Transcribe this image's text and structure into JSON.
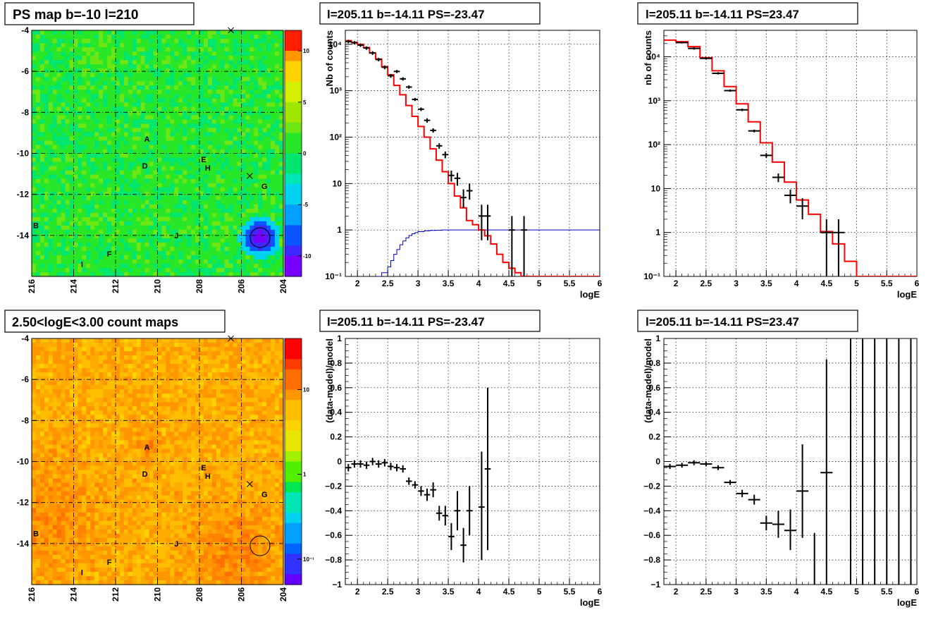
{
  "colors": {
    "model_line": "#ff0000",
    "ps_line": "#0000c8",
    "data_marker": "#000000",
    "grid": "#000000",
    "frame": "#000000",
    "palette": [
      "#7800ff",
      "#3c28ff",
      "#0a55ff",
      "#00a0ff",
      "#00d2f0",
      "#00e6b4",
      "#00e66e",
      "#28e628",
      "#8cf000",
      "#d2f000",
      "#ffd200",
      "#ff9600",
      "#ff5a00",
      "#ff1e00"
    ]
  },
  "chart_data": [
    {
      "type": "heatmap",
      "title": "PS map b=-10 l=210",
      "xlim": [
        216,
        204
      ],
      "ylim": [
        -16,
        -4
      ],
      "xticks": [
        216,
        214,
        212,
        210,
        208,
        206,
        204
      ],
      "yticks": [
        -4,
        -6,
        -8,
        -10,
        -12,
        -14
      ],
      "colorbar_range": [
        -12,
        12
      ],
      "colorbar_ticks": [
        -10,
        -5,
        0,
        5,
        10
      ],
      "grid": true,
      "sources": [
        {
          "label": "A",
          "l": 210.5,
          "b": -9.3
        },
        {
          "label": "B",
          "l": 215.8,
          "b": -13.5
        },
        {
          "label": "D",
          "l": 210.6,
          "b": -10.6
        },
        {
          "label": "E",
          "l": 207.8,
          "b": -10.3
        },
        {
          "label": "F",
          "l": 212.3,
          "b": -14.9
        },
        {
          "label": "G",
          "l": 204.9,
          "b": -11.6
        },
        {
          "label": "H",
          "l": 207.6,
          "b": -10.7
        },
        {
          "label": "I",
          "l": 213.6,
          "b": -15.4
        },
        {
          "label": "J",
          "l": 209.1,
          "b": -14.0
        }
      ],
      "crosses": [
        {
          "l": 206.5,
          "b": -4.0
        },
        {
          "l": 205.6,
          "b": -11.1
        }
      ],
      "circle": {
        "l": 205.11,
        "b": -14.11
      }
    },
    {
      "type": "line",
      "title": "l=205.11 b=-14.11 PS=-23.47",
      "xlabel": "logE",
      "ylabel": "Nb of counts",
      "xlim": [
        1.8,
        6
      ],
      "ylim": [
        0.1,
        20000
      ],
      "yscale": "log",
      "xticks": [
        2,
        2.5,
        3,
        3.5,
        4,
        4.5,
        5,
        5.5,
        6
      ],
      "yticks": [
        0.1,
        1,
        10,
        100,
        1000,
        10000
      ],
      "yticklabels": [
        "10⁻¹",
        "1",
        "10",
        "10²",
        "10³",
        "10⁴"
      ],
      "grid": true,
      "model": {
        "edges": [
          1.8,
          1.9,
          2.0,
          2.1,
          2.2,
          2.3,
          2.4,
          2.5,
          2.6,
          2.7,
          2.8,
          2.9,
          3.0,
          3.1,
          3.2,
          3.3,
          3.4,
          3.5,
          3.6,
          3.7,
          3.8,
          3.9,
          4.0,
          4.1,
          4.2,
          4.3,
          4.4,
          4.5,
          4.6,
          4.7,
          4.8,
          4.9,
          5.0,
          6.0
        ],
        "values": [
          12000,
          11000,
          10000,
          8500,
          6500,
          4800,
          3300,
          2200,
          1300,
          820,
          480,
          280,
          170,
          100,
          56,
          32,
          18,
          10,
          5.4,
          3.0,
          1.6,
          1.3,
          1.0,
          0.75,
          0.5,
          0.3,
          0.2,
          0.15,
          0.12,
          0.1,
          0.1,
          0.1,
          0.1
        ]
      },
      "ps": {
        "edges": [
          2.3,
          2.4,
          2.5,
          2.55,
          2.6,
          2.65,
          2.7,
          2.75,
          2.8,
          2.85,
          2.9,
          2.95,
          3.0,
          3.1,
          3.2,
          3.3,
          3.4,
          6.0
        ],
        "values": [
          0.1,
          0.12,
          0.16,
          0.22,
          0.3,
          0.38,
          0.48,
          0.58,
          0.68,
          0.76,
          0.83,
          0.88,
          0.92,
          0.96,
          0.98,
          0.99,
          1.0
        ]
      },
      "data": [
        {
          "x": 1.85,
          "y": 11500,
          "ylo": 10500,
          "yhi": 12500,
          "xerr": 0.05
        },
        {
          "x": 1.95,
          "y": 10800,
          "ylo": 9900,
          "yhi": 11700,
          "xerr": 0.05
        },
        {
          "x": 2.05,
          "y": 9600,
          "ylo": 8800,
          "yhi": 10400,
          "xerr": 0.05
        },
        {
          "x": 2.15,
          "y": 8300,
          "ylo": 7600,
          "yhi": 9000,
          "xerr": 0.05
        },
        {
          "x": 2.25,
          "y": 6500,
          "ylo": 5900,
          "yhi": 7100,
          "xerr": 0.05
        },
        {
          "x": 2.35,
          "y": 4700,
          "ylo": 4300,
          "yhi": 5100,
          "xerr": 0.05
        },
        {
          "x": 2.45,
          "y": 3200,
          "ylo": 2900,
          "yhi": 3500,
          "xerr": 0.05
        },
        {
          "x": 2.55,
          "y": 2100,
          "ylo": 1900,
          "yhi": 2300,
          "xerr": 0.05
        },
        {
          "x": 2.65,
          "y": 2600,
          "ylo": 2400,
          "yhi": 2800,
          "xerr": 0.05
        },
        {
          "x": 2.75,
          "y": 1800,
          "ylo": 1650,
          "yhi": 1950,
          "xerr": 0.05
        },
        {
          "x": 2.85,
          "y": 1200,
          "ylo": 1100,
          "yhi": 1300,
          "xerr": 0.05
        },
        {
          "x": 2.95,
          "y": 650,
          "ylo": 600,
          "yhi": 700,
          "xerr": 0.05
        },
        {
          "x": 3.05,
          "y": 400,
          "ylo": 365,
          "yhi": 435,
          "xerr": 0.05
        },
        {
          "x": 3.15,
          "y": 230,
          "ylo": 205,
          "yhi": 255,
          "xerr": 0.05
        },
        {
          "x": 3.25,
          "y": 140,
          "ylo": 125,
          "yhi": 155,
          "xerr": 0.05
        },
        {
          "x": 3.35,
          "y": 65,
          "ylo": 56,
          "yhi": 74,
          "xerr": 0.05
        },
        {
          "x": 3.45,
          "y": 42,
          "ylo": 35,
          "yhi": 49,
          "xerr": 0.05
        },
        {
          "x": 3.55,
          "y": 15,
          "ylo": 11,
          "yhi": 19,
          "xerr": 0.05
        },
        {
          "x": 3.65,
          "y": 13,
          "ylo": 9,
          "yhi": 17,
          "xerr": 0.05
        },
        {
          "x": 3.75,
          "y": 5,
          "ylo": 3,
          "yhi": 7.5,
          "xerr": 0.05
        },
        {
          "x": 3.85,
          "y": 7,
          "ylo": 4.5,
          "yhi": 10,
          "xerr": 0.05
        },
        {
          "x": 4.05,
          "y": 2,
          "ylo": 0.6,
          "yhi": 3.5,
          "xerr": 0.05
        },
        {
          "x": 4.15,
          "y": 2,
          "ylo": 0.6,
          "yhi": 3.5,
          "xerr": 0.05
        },
        {
          "x": 4.55,
          "y": 1,
          "ylo": 0.1,
          "yhi": 2.0,
          "xerr": 0.05
        },
        {
          "x": 4.75,
          "y": 1,
          "ylo": 0.1,
          "yhi": 2.0,
          "xerr": 0.05
        }
      ]
    },
    {
      "type": "line",
      "title": "l=205.11 b=-14.11 PS=23.47",
      "xlabel": "logE",
      "ylabel": "nb of counts",
      "xlim": [
        1.8,
        6
      ],
      "ylim": [
        0.1,
        40000
      ],
      "yscale": "log",
      "xticks": [
        2,
        2.5,
        3,
        3.5,
        4,
        4.5,
        5,
        5.5,
        6
      ],
      "yticks": [
        0.1,
        1,
        10,
        100,
        1000,
        10000
      ],
      "yticklabels": [
        "10⁻¹",
        "1",
        "10",
        "10²",
        "10³",
        "10⁴"
      ],
      "grid": true,
      "model": {
        "edges": [
          1.8,
          2.0,
          2.2,
          2.4,
          2.6,
          2.8,
          3.0,
          3.2,
          3.4,
          3.6,
          3.8,
          4.0,
          4.2,
          4.4,
          4.6,
          4.8,
          5.0,
          6.0
        ],
        "values": [
          24000,
          22000,
          17000,
          9500,
          4800,
          2100,
          850,
          330,
          110,
          40,
          14,
          5.5,
          2.6,
          1.05,
          0.55,
          0.22,
          0.1
        ]
      },
      "data": [
        {
          "x": 2.1,
          "y": 21000,
          "ylo": 20000,
          "yhi": 22000,
          "xerr": 0.1
        },
        {
          "x": 2.3,
          "y": 15500,
          "ylo": 14500,
          "yhi": 16500,
          "xerr": 0.1
        },
        {
          "x": 2.5,
          "y": 9200,
          "ylo": 8700,
          "yhi": 9700,
          "xerr": 0.1
        },
        {
          "x": 2.7,
          "y": 4200,
          "ylo": 3950,
          "yhi": 4450,
          "xerr": 0.1
        },
        {
          "x": 2.9,
          "y": 1700,
          "ylo": 1600,
          "yhi": 1800,
          "xerr": 0.1
        },
        {
          "x": 3.1,
          "y": 620,
          "ylo": 580,
          "yhi": 660,
          "xerr": 0.1
        },
        {
          "x": 3.3,
          "y": 205,
          "ylo": 190,
          "yhi": 220,
          "xerr": 0.1
        },
        {
          "x": 3.5,
          "y": 57,
          "ylo": 50,
          "yhi": 64,
          "xerr": 0.1
        },
        {
          "x": 3.7,
          "y": 18,
          "ylo": 14,
          "yhi": 22,
          "xerr": 0.1
        },
        {
          "x": 3.9,
          "y": 7,
          "ylo": 4.6,
          "yhi": 9.5,
          "xerr": 0.1
        },
        {
          "x": 4.1,
          "y": 4,
          "ylo": 2,
          "yhi": 6,
          "xerr": 0.1
        },
        {
          "x": 4.5,
          "y": 1,
          "ylo": 0.1,
          "yhi": 2.0,
          "xerr": 0.1
        },
        {
          "x": 4.7,
          "y": 1,
          "ylo": 0.1,
          "yhi": 2.0,
          "xerr": 0.1
        }
      ]
    },
    {
      "type": "heatmap",
      "title": "2.50<logE<3.00 count maps",
      "xlim": [
        216,
        204
      ],
      "ylim": [
        -16,
        -4
      ],
      "xticks": [
        216,
        214,
        212,
        210,
        208,
        206,
        204
      ],
      "yticks": [
        -4,
        -6,
        -8,
        -10,
        -12,
        -14
      ],
      "colorbar_scale": "log",
      "colorbar_range": [
        0.05,
        40
      ],
      "colorbar_ticks": [
        0.1,
        1,
        10
      ],
      "colorbar_ticklabels": [
        "10⁻¹",
        "1",
        "10"
      ],
      "grid": true,
      "sources": [
        {
          "label": "A",
          "l": 210.5,
          "b": -9.3
        },
        {
          "label": "B",
          "l": 215.8,
          "b": -13.5
        },
        {
          "label": "D",
          "l": 210.6,
          "b": -10.6
        },
        {
          "label": "E",
          "l": 207.8,
          "b": -10.3
        },
        {
          "label": "F",
          "l": 212.3,
          "b": -14.9
        },
        {
          "label": "G",
          "l": 204.9,
          "b": -11.6
        },
        {
          "label": "H",
          "l": 207.6,
          "b": -10.7
        },
        {
          "label": "I",
          "l": 213.6,
          "b": -15.4
        },
        {
          "label": "J",
          "l": 209.1,
          "b": -14.0
        }
      ],
      "crosses": [
        {
          "l": 206.5,
          "b": -4.0
        },
        {
          "l": 205.6,
          "b": -11.1
        }
      ],
      "circle": {
        "l": 205.11,
        "b": -14.11
      }
    },
    {
      "type": "scatter",
      "title": "l=205.11 b=-14.11 PS=-23.47",
      "xlabel": "logE",
      "ylabel": "(data-model)/model",
      "xlim": [
        1.8,
        6
      ],
      "ylim": [
        -1,
        1
      ],
      "xticks": [
        2,
        2.5,
        3,
        3.5,
        4,
        4.5,
        5,
        5.5,
        6
      ],
      "yticks": [
        -1,
        -0.8,
        -0.6,
        -0.4,
        -0.2,
        0,
        0.2,
        0.4,
        0.6,
        0.8,
        1
      ],
      "yticklabels": [
        "−1",
        "−0.8",
        "−0.6",
        "−0.4",
        "−0.2",
        "0",
        "0.2",
        "0.4",
        "0.6",
        "0.8",
        "1"
      ],
      "grid": true,
      "data": [
        {
          "x": 1.85,
          "y": -0.05,
          "ylo": -0.08,
          "yhi": -0.02,
          "xerr": 0.05
        },
        {
          "x": 1.95,
          "y": -0.02,
          "ylo": -0.05,
          "yhi": 0.01,
          "xerr": 0.05
        },
        {
          "x": 2.05,
          "y": -0.02,
          "ylo": -0.05,
          "yhi": 0.01,
          "xerr": 0.05
        },
        {
          "x": 2.15,
          "y": -0.03,
          "ylo": -0.06,
          "yhi": 0.0,
          "xerr": 0.05
        },
        {
          "x": 2.25,
          "y": 0.0,
          "ylo": -0.03,
          "yhi": 0.03,
          "xerr": 0.05
        },
        {
          "x": 2.35,
          "y": -0.02,
          "ylo": -0.05,
          "yhi": 0.01,
          "xerr": 0.05
        },
        {
          "x": 2.45,
          "y": -0.01,
          "ylo": -0.04,
          "yhi": 0.02,
          "xerr": 0.05
        },
        {
          "x": 2.55,
          "y": -0.04,
          "ylo": -0.07,
          "yhi": -0.01,
          "xerr": 0.05
        },
        {
          "x": 2.65,
          "y": -0.05,
          "ylo": -0.08,
          "yhi": -0.02,
          "xerr": 0.05
        },
        {
          "x": 2.75,
          "y": -0.06,
          "ylo": -0.09,
          "yhi": -0.03,
          "xerr": 0.05
        },
        {
          "x": 2.85,
          "y": -0.16,
          "ylo": -0.19,
          "yhi": -0.13,
          "xerr": 0.05
        },
        {
          "x": 2.95,
          "y": -0.19,
          "ylo": -0.22,
          "yhi": -0.16,
          "xerr": 0.05
        },
        {
          "x": 3.05,
          "y": -0.24,
          "ylo": -0.28,
          "yhi": -0.2,
          "xerr": 0.05
        },
        {
          "x": 3.15,
          "y": -0.27,
          "ylo": -0.32,
          "yhi": -0.22,
          "xerr": 0.05
        },
        {
          "x": 3.25,
          "y": -0.23,
          "ylo": -0.29,
          "yhi": -0.17,
          "xerr": 0.05
        },
        {
          "x": 3.35,
          "y": -0.42,
          "ylo": -0.48,
          "yhi": -0.36,
          "xerr": 0.05
        },
        {
          "x": 3.45,
          "y": -0.44,
          "ylo": -0.52,
          "yhi": -0.36,
          "xerr": 0.05
        },
        {
          "x": 3.55,
          "y": -0.61,
          "ylo": -0.72,
          "yhi": -0.5,
          "xerr": 0.05
        },
        {
          "x": 3.65,
          "y": -0.4,
          "ylo": -0.56,
          "yhi": -0.24,
          "xerr": 0.05
        },
        {
          "x": 3.75,
          "y": -0.68,
          "ylo": -0.82,
          "yhi": -0.54,
          "xerr": 0.05
        },
        {
          "x": 3.85,
          "y": -0.4,
          "ylo": -0.6,
          "yhi": -0.2,
          "xerr": 0.05
        },
        {
          "x": 4.05,
          "y": -0.37,
          "ylo": -0.8,
          "yhi": 0.08,
          "xerr": 0.05
        },
        {
          "x": 4.15,
          "y": -0.06,
          "ylo": -0.72,
          "yhi": 0.6,
          "xerr": 0.05
        }
      ]
    },
    {
      "type": "scatter",
      "title": "l=205.11 b=-14.11 PS=23.47",
      "xlabel": "logE",
      "ylabel": "(data-model)/model",
      "xlim": [
        1.8,
        6
      ],
      "ylim": [
        -1,
        1
      ],
      "xticks": [
        2,
        2.5,
        3,
        3.5,
        4,
        4.5,
        5,
        5.5,
        6
      ],
      "yticks": [
        -1,
        -0.8,
        -0.6,
        -0.4,
        -0.2,
        0,
        0.2,
        0.4,
        0.6,
        0.8,
        1
      ],
      "yticklabels": [
        "−1",
        "−0.8",
        "−0.6",
        "−0.4",
        "−0.2",
        "0",
        "0.2",
        "0.4",
        "0.6",
        "0.8",
        "1"
      ],
      "grid": true,
      "data": [
        {
          "x": 1.9,
          "y": -0.04,
          "ylo": -0.06,
          "yhi": -0.02,
          "xerr": 0.1
        },
        {
          "x": 2.1,
          "y": -0.03,
          "ylo": -0.05,
          "yhi": -0.01,
          "xerr": 0.1
        },
        {
          "x": 2.3,
          "y": -0.01,
          "ylo": -0.03,
          "yhi": 0.01,
          "xerr": 0.1
        },
        {
          "x": 2.5,
          "y": -0.02,
          "ylo": -0.04,
          "yhi": 0.0,
          "xerr": 0.1
        },
        {
          "x": 2.7,
          "y": -0.05,
          "ylo": -0.07,
          "yhi": -0.03,
          "xerr": 0.1
        },
        {
          "x": 2.9,
          "y": -0.17,
          "ylo": -0.19,
          "yhi": -0.15,
          "xerr": 0.1
        },
        {
          "x": 3.1,
          "y": -0.26,
          "ylo": -0.29,
          "yhi": -0.23,
          "xerr": 0.1
        },
        {
          "x": 3.3,
          "y": -0.31,
          "ylo": -0.35,
          "yhi": -0.27,
          "xerr": 0.1
        },
        {
          "x": 3.5,
          "y": -0.5,
          "ylo": -0.56,
          "yhi": -0.44,
          "xerr": 0.1
        },
        {
          "x": 3.7,
          "y": -0.51,
          "ylo": -0.62,
          "yhi": -0.4,
          "xerr": 0.1
        },
        {
          "x": 3.9,
          "y": -0.56,
          "ylo": -0.72,
          "yhi": -0.39,
          "xerr": 0.1
        },
        {
          "x": 4.1,
          "y": -0.24,
          "ylo": -0.62,
          "yhi": 0.14,
          "xerr": 0.1
        },
        {
          "x": 4.3,
          "y": -1.0,
          "ylo": -1.0,
          "yhi": -0.58,
          "xerr": 0.0
        },
        {
          "x": 4.5,
          "y": -0.09,
          "ylo": -1.0,
          "yhi": 0.83,
          "xerr": 0.1
        },
        {
          "x": 4.9,
          "y": 0.0,
          "ylo": -1.0,
          "yhi": 1.0,
          "xerr": 0.0
        },
        {
          "x": 5.1,
          "y": 0.0,
          "ylo": -1.0,
          "yhi": 1.0,
          "xerr": 0.0
        },
        {
          "x": 5.3,
          "y": 0.0,
          "ylo": -1.0,
          "yhi": 1.0,
          "xerr": 0.0
        },
        {
          "x": 5.5,
          "y": 0.0,
          "ylo": -1.0,
          "yhi": 1.0,
          "xerr": 0.0
        },
        {
          "x": 5.7,
          "y": 0.0,
          "ylo": -1.0,
          "yhi": 1.0,
          "xerr": 0.0
        },
        {
          "x": 5.9,
          "y": 0.0,
          "ylo": -1.0,
          "yhi": 1.0,
          "xerr": 0.0
        }
      ]
    }
  ]
}
